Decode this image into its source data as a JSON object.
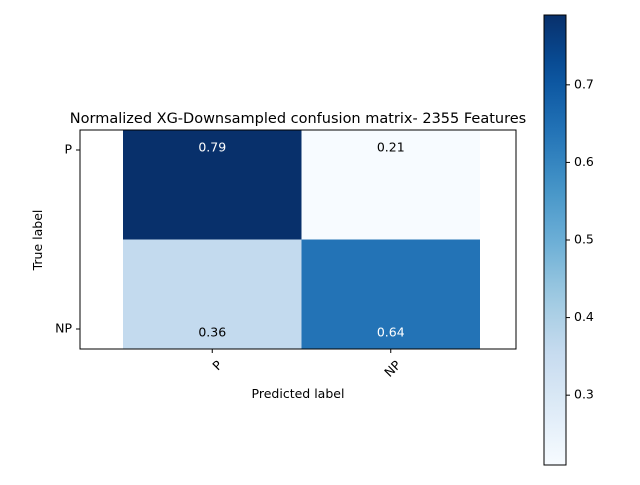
{
  "chart_data": {
    "type": "heatmap",
    "title": "Normalized XG-Downsampled confusion matrix- 2355 Features",
    "xlabel": "Predicted label",
    "ylabel": "True label",
    "x_categories": [
      "P",
      "NP"
    ],
    "y_categories": [
      "P",
      "NP"
    ],
    "values": [
      [
        0.79,
        0.21
      ],
      [
        0.36,
        0.64
      ]
    ],
    "cell_labels": [
      [
        "0.79",
        "0.21"
      ],
      [
        "0.36",
        "0.64"
      ]
    ],
    "colormap": "Blues",
    "colorbar": {
      "range": [
        0.21,
        0.79
      ],
      "ticks": [
        0.3,
        0.4,
        0.5,
        0.6,
        0.7
      ],
      "tick_labels": [
        "0.3",
        "0.4",
        "0.5",
        "0.6",
        "0.7"
      ]
    },
    "grid": false
  }
}
